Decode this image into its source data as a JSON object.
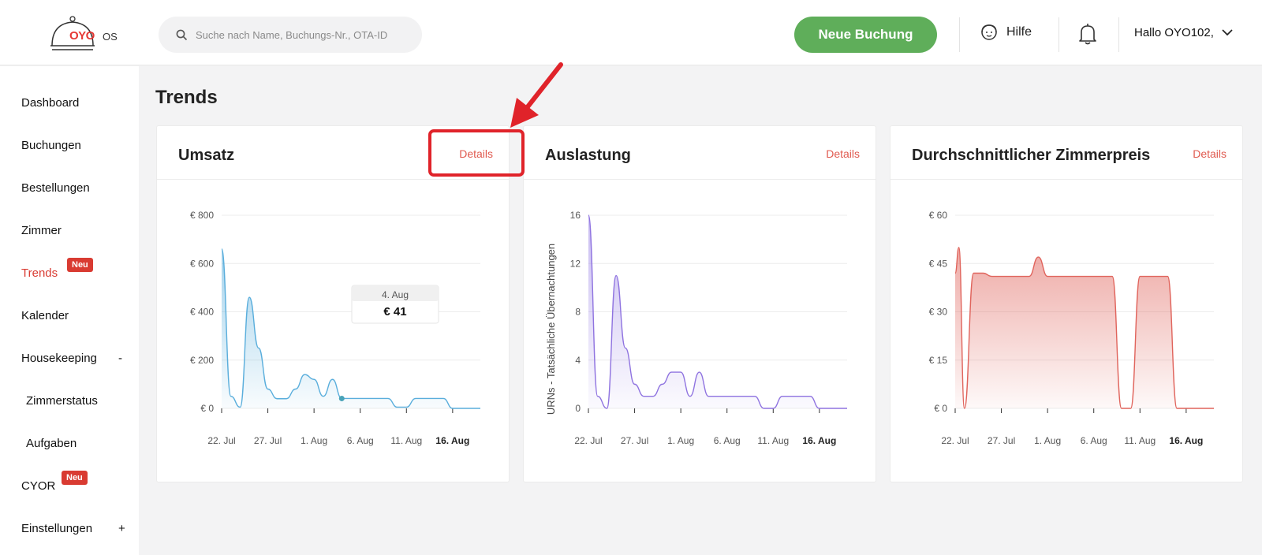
{
  "header": {
    "logo_text": "OYO",
    "logo_suffix": "OS",
    "search_placeholder": "Suche nach Name, Buchungs-Nr., OTA-ID",
    "new_booking": "Neue Buchung",
    "help": "Hilfe",
    "greeting": "Hallo OYO102,"
  },
  "sidebar": {
    "items": [
      {
        "label": "Dashboard"
      },
      {
        "label": "Buchungen"
      },
      {
        "label": "Bestellungen"
      },
      {
        "label": "Zimmer"
      },
      {
        "label": "Trends",
        "badge": "Neu"
      },
      {
        "label": "Kalender"
      },
      {
        "label": "Housekeeping",
        "toggle": "-"
      },
      {
        "label": "Zimmerstatus"
      },
      {
        "label": "Aufgaben"
      },
      {
        "label": "CYOR",
        "badge": "Neu"
      },
      {
        "label": "Einstellungen",
        "toggle": "+"
      }
    ]
  },
  "main": {
    "title": "Trends",
    "details_label": "Details"
  },
  "colors": {
    "accent_red": "#d93b32",
    "green": "#5fae5a",
    "revenue_line": "#5aaedc",
    "occupancy_line": "#8f73e0",
    "price_line": "#e0645c"
  },
  "chart_data": [
    {
      "type": "area",
      "title": "Umsatz",
      "ylabel": "",
      "ylim": [
        0,
        800
      ],
      "yticks": [
        "€ 800",
        "€ 600",
        "€ 400",
        "€ 200",
        "€ 0"
      ],
      "ytick_values": [
        800,
        600,
        400,
        200,
        0
      ],
      "xticks": [
        "22. Jul",
        "27. Jul",
        "1. Aug",
        "6. Aug",
        "11. Aug",
        "16. Aug"
      ],
      "xtick_days": [
        0,
        5,
        10,
        15,
        20,
        25
      ],
      "x_days": [
        0,
        1,
        2,
        3,
        4,
        5,
        6,
        7,
        8,
        9,
        10,
        11,
        12,
        13,
        14,
        15,
        16,
        17,
        18,
        19,
        20,
        21,
        22,
        23,
        24,
        25,
        26,
        27,
        28
      ],
      "values": [
        660,
        50,
        5,
        460,
        250,
        80,
        40,
        40,
        80,
        140,
        120,
        50,
        120,
        41,
        41,
        41,
        41,
        41,
        41,
        5,
        5,
        41,
        41,
        41,
        41,
        0,
        0,
        0,
        0
      ],
      "tooltip": {
        "label": "4. Aug",
        "value": "€ 41"
      },
      "highlight_day": 13
    },
    {
      "type": "area",
      "title": "Auslastung",
      "ylabel": "URNs - Tatsächliche Übernachtungen",
      "ylim": [
        0,
        16
      ],
      "yticks": [
        "16",
        "12",
        "8",
        "4",
        "0"
      ],
      "ytick_values": [
        16,
        12,
        8,
        4,
        0
      ],
      "xticks": [
        "22. Jul",
        "27. Jul",
        "1. Aug",
        "6. Aug",
        "11. Aug",
        "16. Aug"
      ],
      "xtick_days": [
        0,
        5,
        10,
        15,
        20,
        25
      ],
      "x_days": [
        0,
        1,
        2,
        3,
        4,
        5,
        6,
        7,
        8,
        9,
        10,
        11,
        12,
        13,
        14,
        15,
        16,
        17,
        18,
        19,
        20,
        21,
        22,
        23,
        24,
        25,
        26,
        27,
        28
      ],
      "values": [
        16,
        1,
        0,
        11,
        5,
        2,
        1,
        1,
        2,
        3,
        3,
        1,
        3,
        1,
        1,
        1,
        1,
        1,
        1,
        0,
        0,
        1,
        1,
        1,
        1,
        0,
        0,
        0,
        0
      ]
    },
    {
      "type": "area",
      "title": "Durchschnittlicher Zimmerpreis",
      "ylabel": "",
      "ylim": [
        0,
        60
      ],
      "yticks": [
        "€ 60",
        "€ 45",
        "€ 30",
        "€ 15",
        "€ 0"
      ],
      "ytick_values": [
        60,
        45,
        30,
        15,
        0
      ],
      "xticks": [
        "22. Jul",
        "27. Jul",
        "1. Aug",
        "6. Aug",
        "11. Aug",
        "16. Aug"
      ],
      "xtick_days": [
        0,
        5,
        10,
        15,
        20,
        25
      ],
      "x_days": [
        0,
        0.4,
        1,
        2,
        3,
        4,
        5,
        6,
        7,
        8,
        9,
        10,
        11,
        12,
        13,
        14,
        15,
        16,
        17,
        18,
        19,
        20,
        21,
        22,
        23,
        24,
        25,
        26,
        27,
        28
      ],
      "values": [
        42,
        50,
        0,
        42,
        42,
        41,
        41,
        41,
        41,
        41,
        47,
        41,
        41,
        41,
        41,
        41,
        41,
        41,
        41,
        0,
        0,
        41,
        41,
        41,
        41,
        0,
        0,
        0,
        0,
        0
      ]
    }
  ]
}
